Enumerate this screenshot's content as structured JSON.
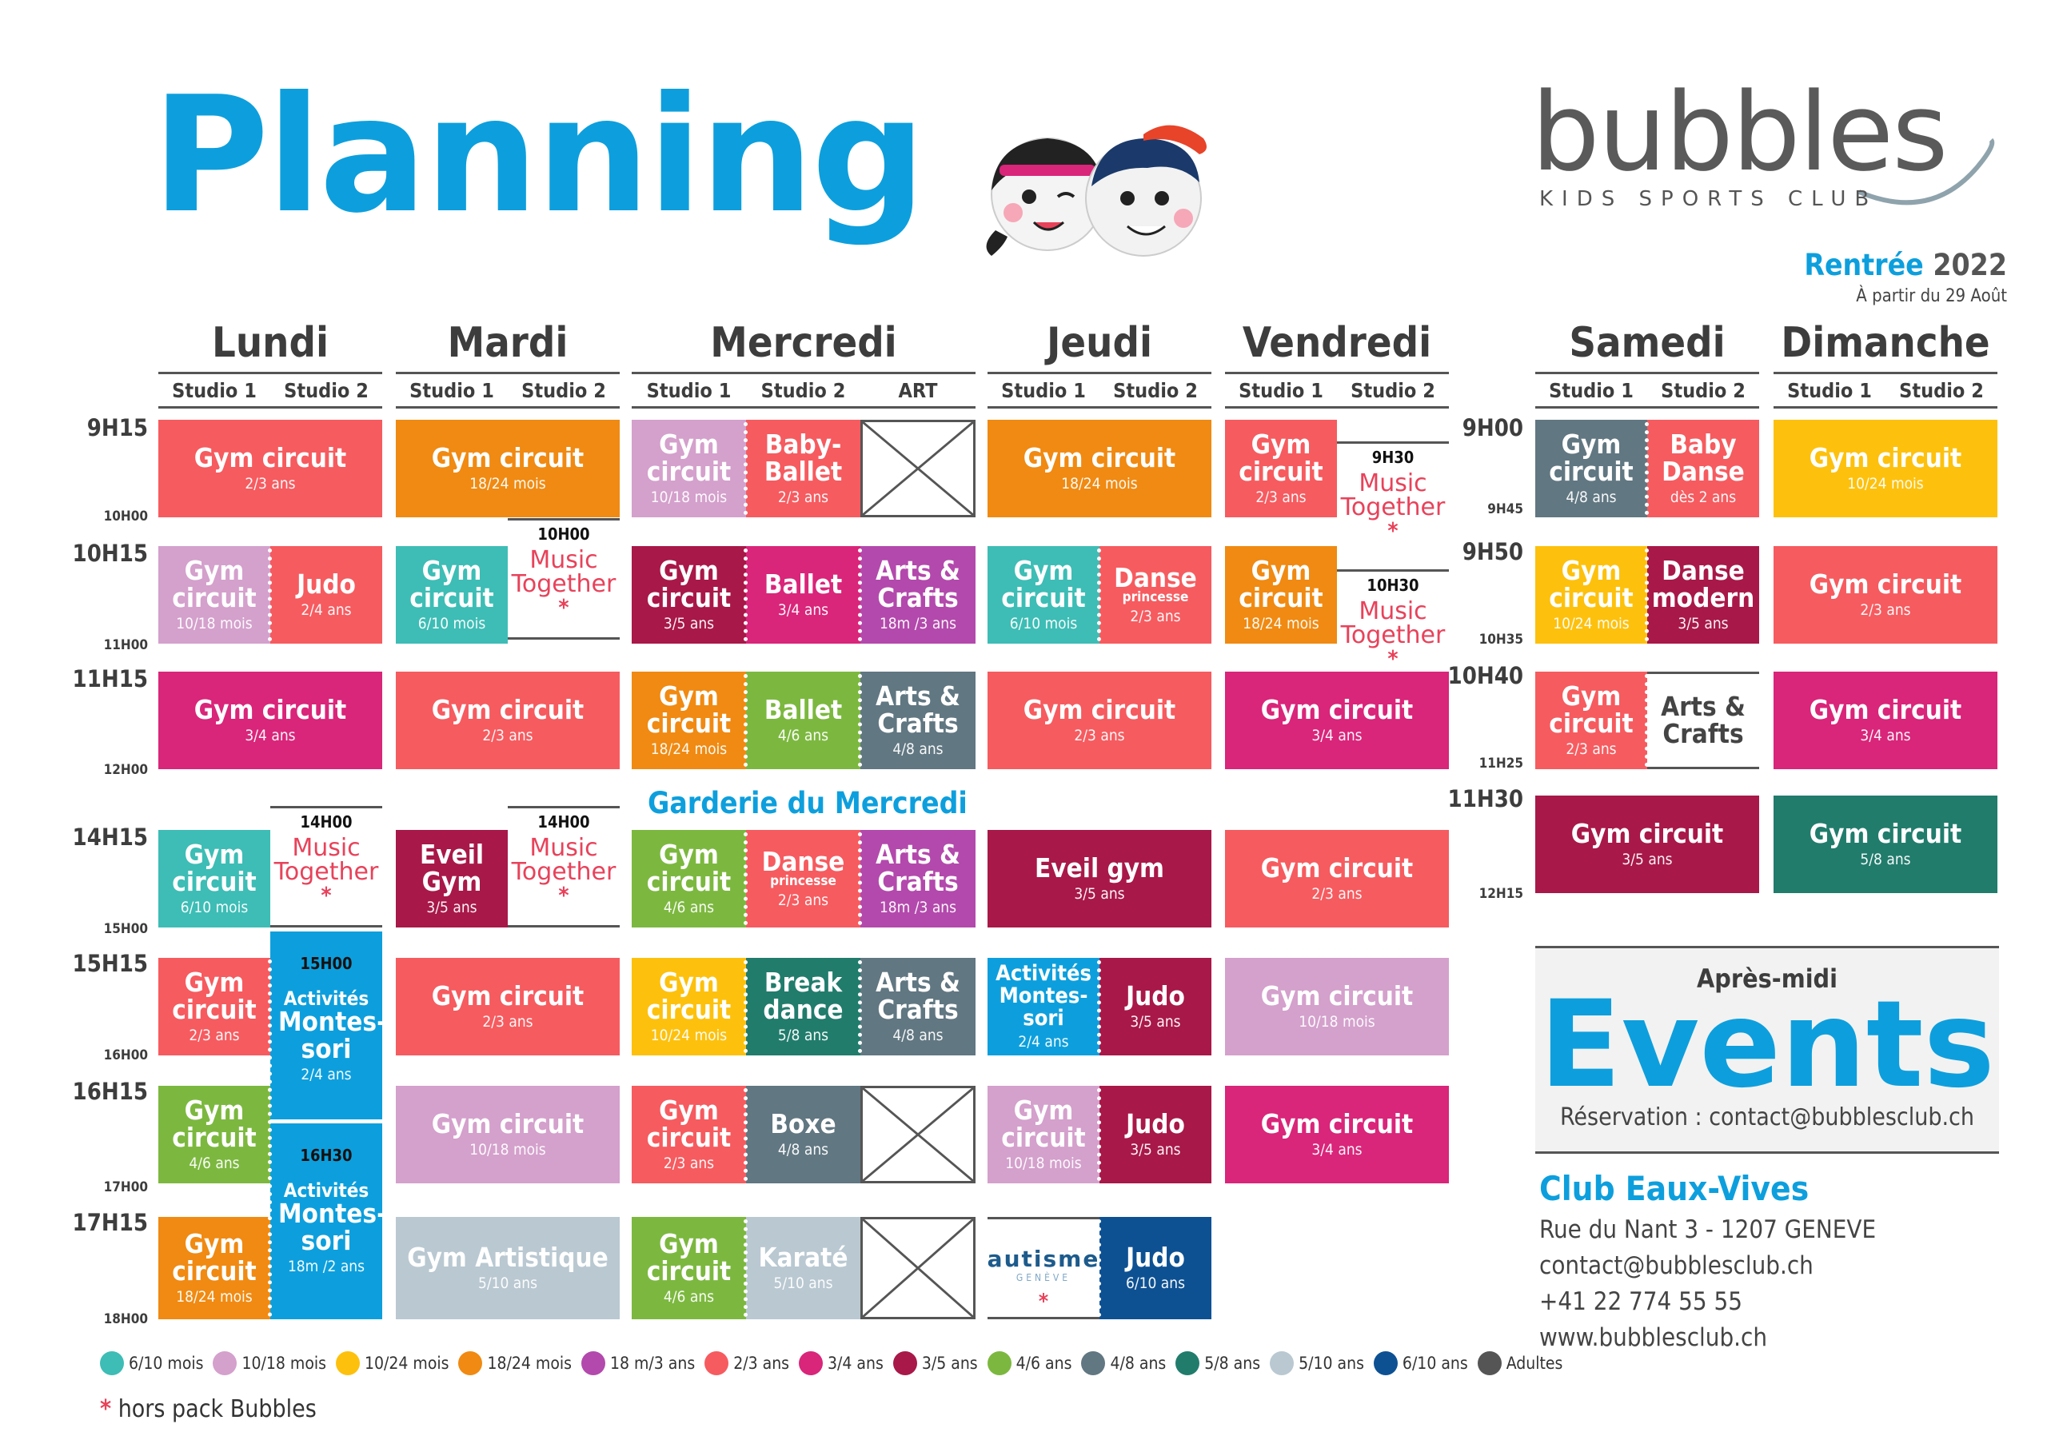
{
  "header": {
    "title": "Planning",
    "brand": "bubbles",
    "brand_sub": "KIDS SPORTS CLUB",
    "rentree_label": "Rentrée",
    "rentree_year": "2022",
    "start_note": "À partir du 29 Août"
  },
  "days": [
    "Lundi",
    "Mardi",
    "Mercredi",
    "Jeudi",
    "Vendredi",
    "Samedi",
    "Dimanche"
  ],
  "studios": {
    "s1": "Studio 1",
    "s2": "Studio 2",
    "art": "ART"
  },
  "times_weekday": [
    "9H15",
    "10H15",
    "11H15",
    "14H15",
    "15H15",
    "16H15",
    "17H15"
  ],
  "ends_weekday": [
    "10H00",
    "11H00",
    "12H00",
    "15H00",
    "16H00",
    "17H00",
    "18H00"
  ],
  "times_weekend": [
    "9H00",
    "9H50",
    "10H40",
    "11H30"
  ],
  "ends_weekend": [
    "9H45",
    "10H35",
    "11H25",
    "12H15"
  ],
  "garderie": "Garderie du Mercredi",
  "music": {
    "name": "Music Together",
    "t1000": "10H00",
    "t1400": "14H00",
    "t0930": "9H30",
    "t1030": "10H30",
    "star": "*"
  },
  "autisme": {
    "word": "autisme",
    "city": "GENÈVE"
  },
  "blocks": {
    "lu1": {
      "n": "Gym circuit",
      "a": "2/3 ans"
    },
    "lu2a": {
      "n": "Gym circuit",
      "a": "10/18 mois"
    },
    "lu2b": {
      "n": "Judo",
      "a": "2/4 ans"
    },
    "lu3": {
      "n": "Gym circuit",
      "a": "3/4 ans"
    },
    "lu4": {
      "n": "Gym circuit",
      "a": "6/10 mois"
    },
    "lu5": {
      "n": "Gym circuit",
      "a": "2/3 ans"
    },
    "lu6": {
      "n": "Gym circuit",
      "a": "4/6 ans"
    },
    "lu7": {
      "n": "Gym circuit",
      "a": "18/24 mois"
    },
    "luM1": {
      "t": "15H00",
      "s": "Activités",
      "n": "Montes-sori",
      "a": "2/4 ans"
    },
    "luM2": {
      "t": "16H30",
      "s": "Activités",
      "n": "Montes-sori",
      "a": "18m /2 ans"
    },
    "ma1": {
      "n": "Gym circuit",
      "a": "18/24 mois"
    },
    "ma2": {
      "n": "Gym circuit",
      "a": "6/10 mois"
    },
    "ma3": {
      "n": "Gym circuit",
      "a": "2/3 ans"
    },
    "ma4": {
      "n": "Eveil Gym",
      "a": "3/5 ans"
    },
    "ma5": {
      "n": "Gym circuit",
      "a": "2/3 ans"
    },
    "ma6": {
      "n": "Gym circuit",
      "a": "10/18 mois"
    },
    "ma7": {
      "n": "Gym Artistique",
      "a": "5/10 ans"
    },
    "me1a": {
      "n": "Gym circuit",
      "a": "10/18 mois"
    },
    "me1b": {
      "n": "Baby-Ballet",
      "a": "2/3 ans"
    },
    "me2a": {
      "n": "Gym circuit",
      "a": "3/5 ans"
    },
    "me2b": {
      "n": "Ballet",
      "a": "3/4 ans"
    },
    "me2c": {
      "n": "Arts & Crafts",
      "a": "18m /3 ans"
    },
    "me3a": {
      "n": "Gym circuit",
      "a": "18/24 mois"
    },
    "me3b": {
      "n": "Ballet",
      "a": "4/6 ans"
    },
    "me3c": {
      "n": "Arts & Crafts",
      "a": "4/8 ans"
    },
    "me4a": {
      "n": "Gym circuit",
      "a": "4/6 ans"
    },
    "me4b": {
      "n": "Danse",
      "s": "princesse",
      "a": "2/3 ans"
    },
    "me4c": {
      "n": "Arts & Crafts",
      "a": "18m /3 ans"
    },
    "me5a": {
      "n": "Gym circuit",
      "a": "10/24 mois"
    },
    "me5b": {
      "n": "Break dance",
      "a": "5/8 ans"
    },
    "me5c": {
      "n": "Arts & Crafts",
      "a": "4/8 ans"
    },
    "me6a": {
      "n": "Gym circuit",
      "a": "2/3 ans"
    },
    "me6b": {
      "n": "Boxe",
      "a": "4/8 ans"
    },
    "me7a": {
      "n": "Gym circuit",
      "a": "4/6 ans"
    },
    "me7b": {
      "n": "Karaté",
      "a": "5/10 ans"
    },
    "je1": {
      "n": "Gym circuit",
      "a": "18/24 mois"
    },
    "je2a": {
      "n": "Gym circuit",
      "a": "6/10 mois"
    },
    "je2b": {
      "n": "Danse",
      "s": "princesse",
      "a": "2/3 ans"
    },
    "je3": {
      "n": "Gym circuit",
      "a": "2/3 ans"
    },
    "je4": {
      "n": "Eveil gym",
      "a": "3/5 ans"
    },
    "je5a": {
      "n": "Activités Montes-sori",
      "a": "2/4 ans"
    },
    "je5b": {
      "n": "Judo",
      "a": "3/5 ans"
    },
    "je6a": {
      "n": "Gym circuit",
      "a": "10/18 mois"
    },
    "je6b": {
      "n": "Judo",
      "a": "3/5 ans"
    },
    "je7b": {
      "n": "Judo",
      "a": "6/10 ans"
    },
    "ve1": {
      "n": "Gym circuit",
      "a": "2/3 ans"
    },
    "ve2": {
      "n": "Gym circuit",
      "a": "18/24 mois"
    },
    "ve3": {
      "n": "Gym circuit",
      "a": "3/4 ans"
    },
    "ve4": {
      "n": "Gym circuit",
      "a": "2/3 ans"
    },
    "ve5": {
      "n": "Gym circuit",
      "a": "10/18 mois"
    },
    "ve6": {
      "n": "Gym circuit",
      "a": "3/4 ans"
    },
    "sa1a": {
      "n": "Gym circuit",
      "a": "4/8 ans"
    },
    "sa1b": {
      "n": "Baby Danse",
      "a": "dès 2 ans"
    },
    "sa2a": {
      "n": "Gym circuit",
      "a": "10/24 mois"
    },
    "sa2b": {
      "n": "Danse modern",
      "a": "3/5 ans"
    },
    "sa3a": {
      "n": "Gym circuit",
      "a": "2/3 ans"
    },
    "sa3b": {
      "n": "Arts & Crafts"
    },
    "sa4": {
      "n": "Gym circuit",
      "a": "3/5 ans"
    },
    "di1": {
      "n": "Gym circuit",
      "a": "10/24 mois"
    },
    "di2": {
      "n": "Gym circuit",
      "a": "2/3 ans"
    },
    "di3": {
      "n": "Gym circuit",
      "a": "3/4 ans"
    },
    "di4": {
      "n": "Gym circuit",
      "a": "5/8 ans"
    }
  },
  "events": {
    "pre": "Après-midi",
    "title": "Events",
    "reservation": "Réservation : contact@bubblesclub.ch"
  },
  "club": {
    "name": "Club Eaux-Vives",
    "street": "Rue du  Nant 3 - 1207 GENEVE",
    "email": "contact@bubblesclub.ch",
    "phone": "+41 22 774 55 55",
    "web": "www.bubblesclub.ch"
  },
  "legend": [
    {
      "label": "6/10 mois",
      "color": "#3dbdb5"
    },
    {
      "label": "10/18 mois",
      "color": "#d4a0cc"
    },
    {
      "label": "10/24 mois",
      "color": "#fdc10d"
    },
    {
      "label": "18/24 mois",
      "color": "#f08a12"
    },
    {
      "label": "18 m/3 ans",
      "color": "#b349ac"
    },
    {
      "label": "2/3 ans",
      "color": "#f65b5f"
    },
    {
      "label": "3/4 ans",
      "color": "#d9257a"
    },
    {
      "label": "3/5 ans",
      "color": "#a81848"
    },
    {
      "label": "4/6 ans",
      "color": "#7cb83f"
    },
    {
      "label": "4/8 ans",
      "color": "#617782"
    },
    {
      "label": "5/8 ans",
      "color": "#217c6c"
    },
    {
      "label": "5/10 ans",
      "color": "#b9c8d1"
    },
    {
      "label": "6/10 ans",
      "color": "#0d5193"
    },
    {
      "label": "Adultes",
      "color": "#555555"
    }
  ],
  "note": {
    "star": "*",
    "text": "hors pack Bubbles"
  },
  "colors": {
    "c610m": "#3dbdb5",
    "c1018m": "#d4a0cc",
    "c1024m": "#fdc10d",
    "c1824m": "#f08a12",
    "c18m3": "#b349ac",
    "c23": "#f65b5f",
    "c34": "#d9257a",
    "c35": "#a81848",
    "c46": "#7cb83f",
    "c48": "#617782",
    "c58": "#217c6c",
    "c510": "#b9c8d1",
    "c610a": "#0d5193",
    "montessori": "#0d9fdd",
    "accent": "#0d9fdd"
  }
}
